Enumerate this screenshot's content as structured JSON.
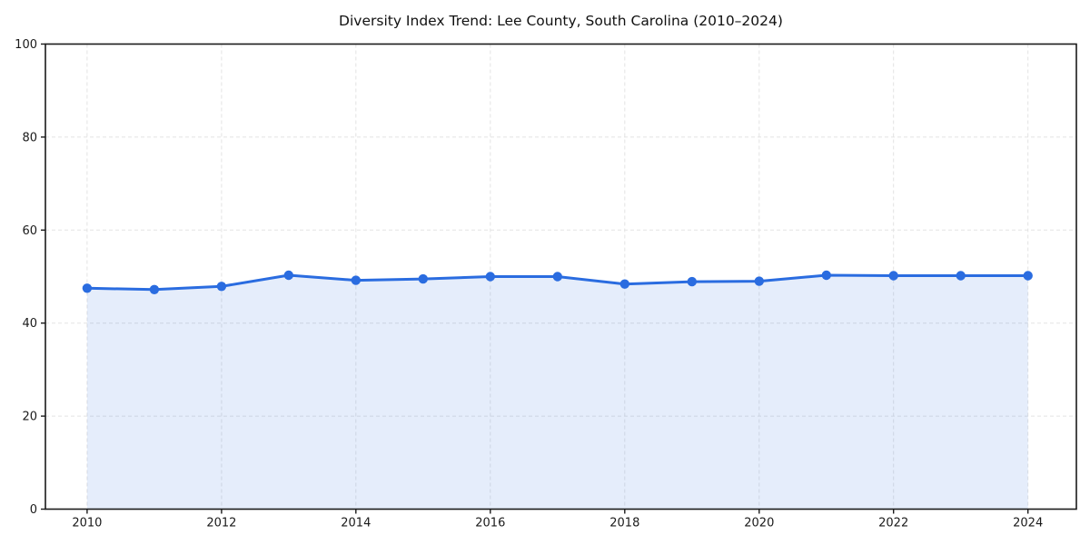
{
  "page": {
    "background": "#ffffff"
  },
  "chart_data": {
    "type": "line",
    "title": "Diversity Index Trend: Lee County, South Carolina (2010–2024)",
    "xlabel": "",
    "ylabel": "",
    "x": [
      2010,
      2011,
      2012,
      2013,
      2014,
      2015,
      2016,
      2017,
      2018,
      2019,
      2020,
      2021,
      2022,
      2023,
      2024
    ],
    "series": [
      {
        "name": "Diversity Index",
        "values": [
          47.5,
          47.2,
          47.9,
          50.3,
          49.2,
          49.5,
          50.0,
          50.0,
          48.4,
          48.9,
          49.0,
          50.3,
          50.2,
          50.2,
          50.2
        ]
      }
    ],
    "area_fill": true,
    "xlim": [
      2009.38,
      2024.72
    ],
    "ylim": [
      0,
      100
    ],
    "xticks": [
      2010,
      2012,
      2014,
      2016,
      2018,
      2020,
      2022,
      2024
    ],
    "yticks": [
      0,
      20,
      40,
      60,
      80,
      100
    ],
    "grid": {
      "visible": true,
      "style": "dashed",
      "color": "#e3e3e3"
    },
    "legend": "none",
    "marker": "circle",
    "colors": {
      "line": "#2a6ce0",
      "marker": "#2a6ce0",
      "fill": "#2a6ce0",
      "fill_opacity": 0.12,
      "axis": "#1a1a1a",
      "text": "#1a1a1a"
    }
  }
}
